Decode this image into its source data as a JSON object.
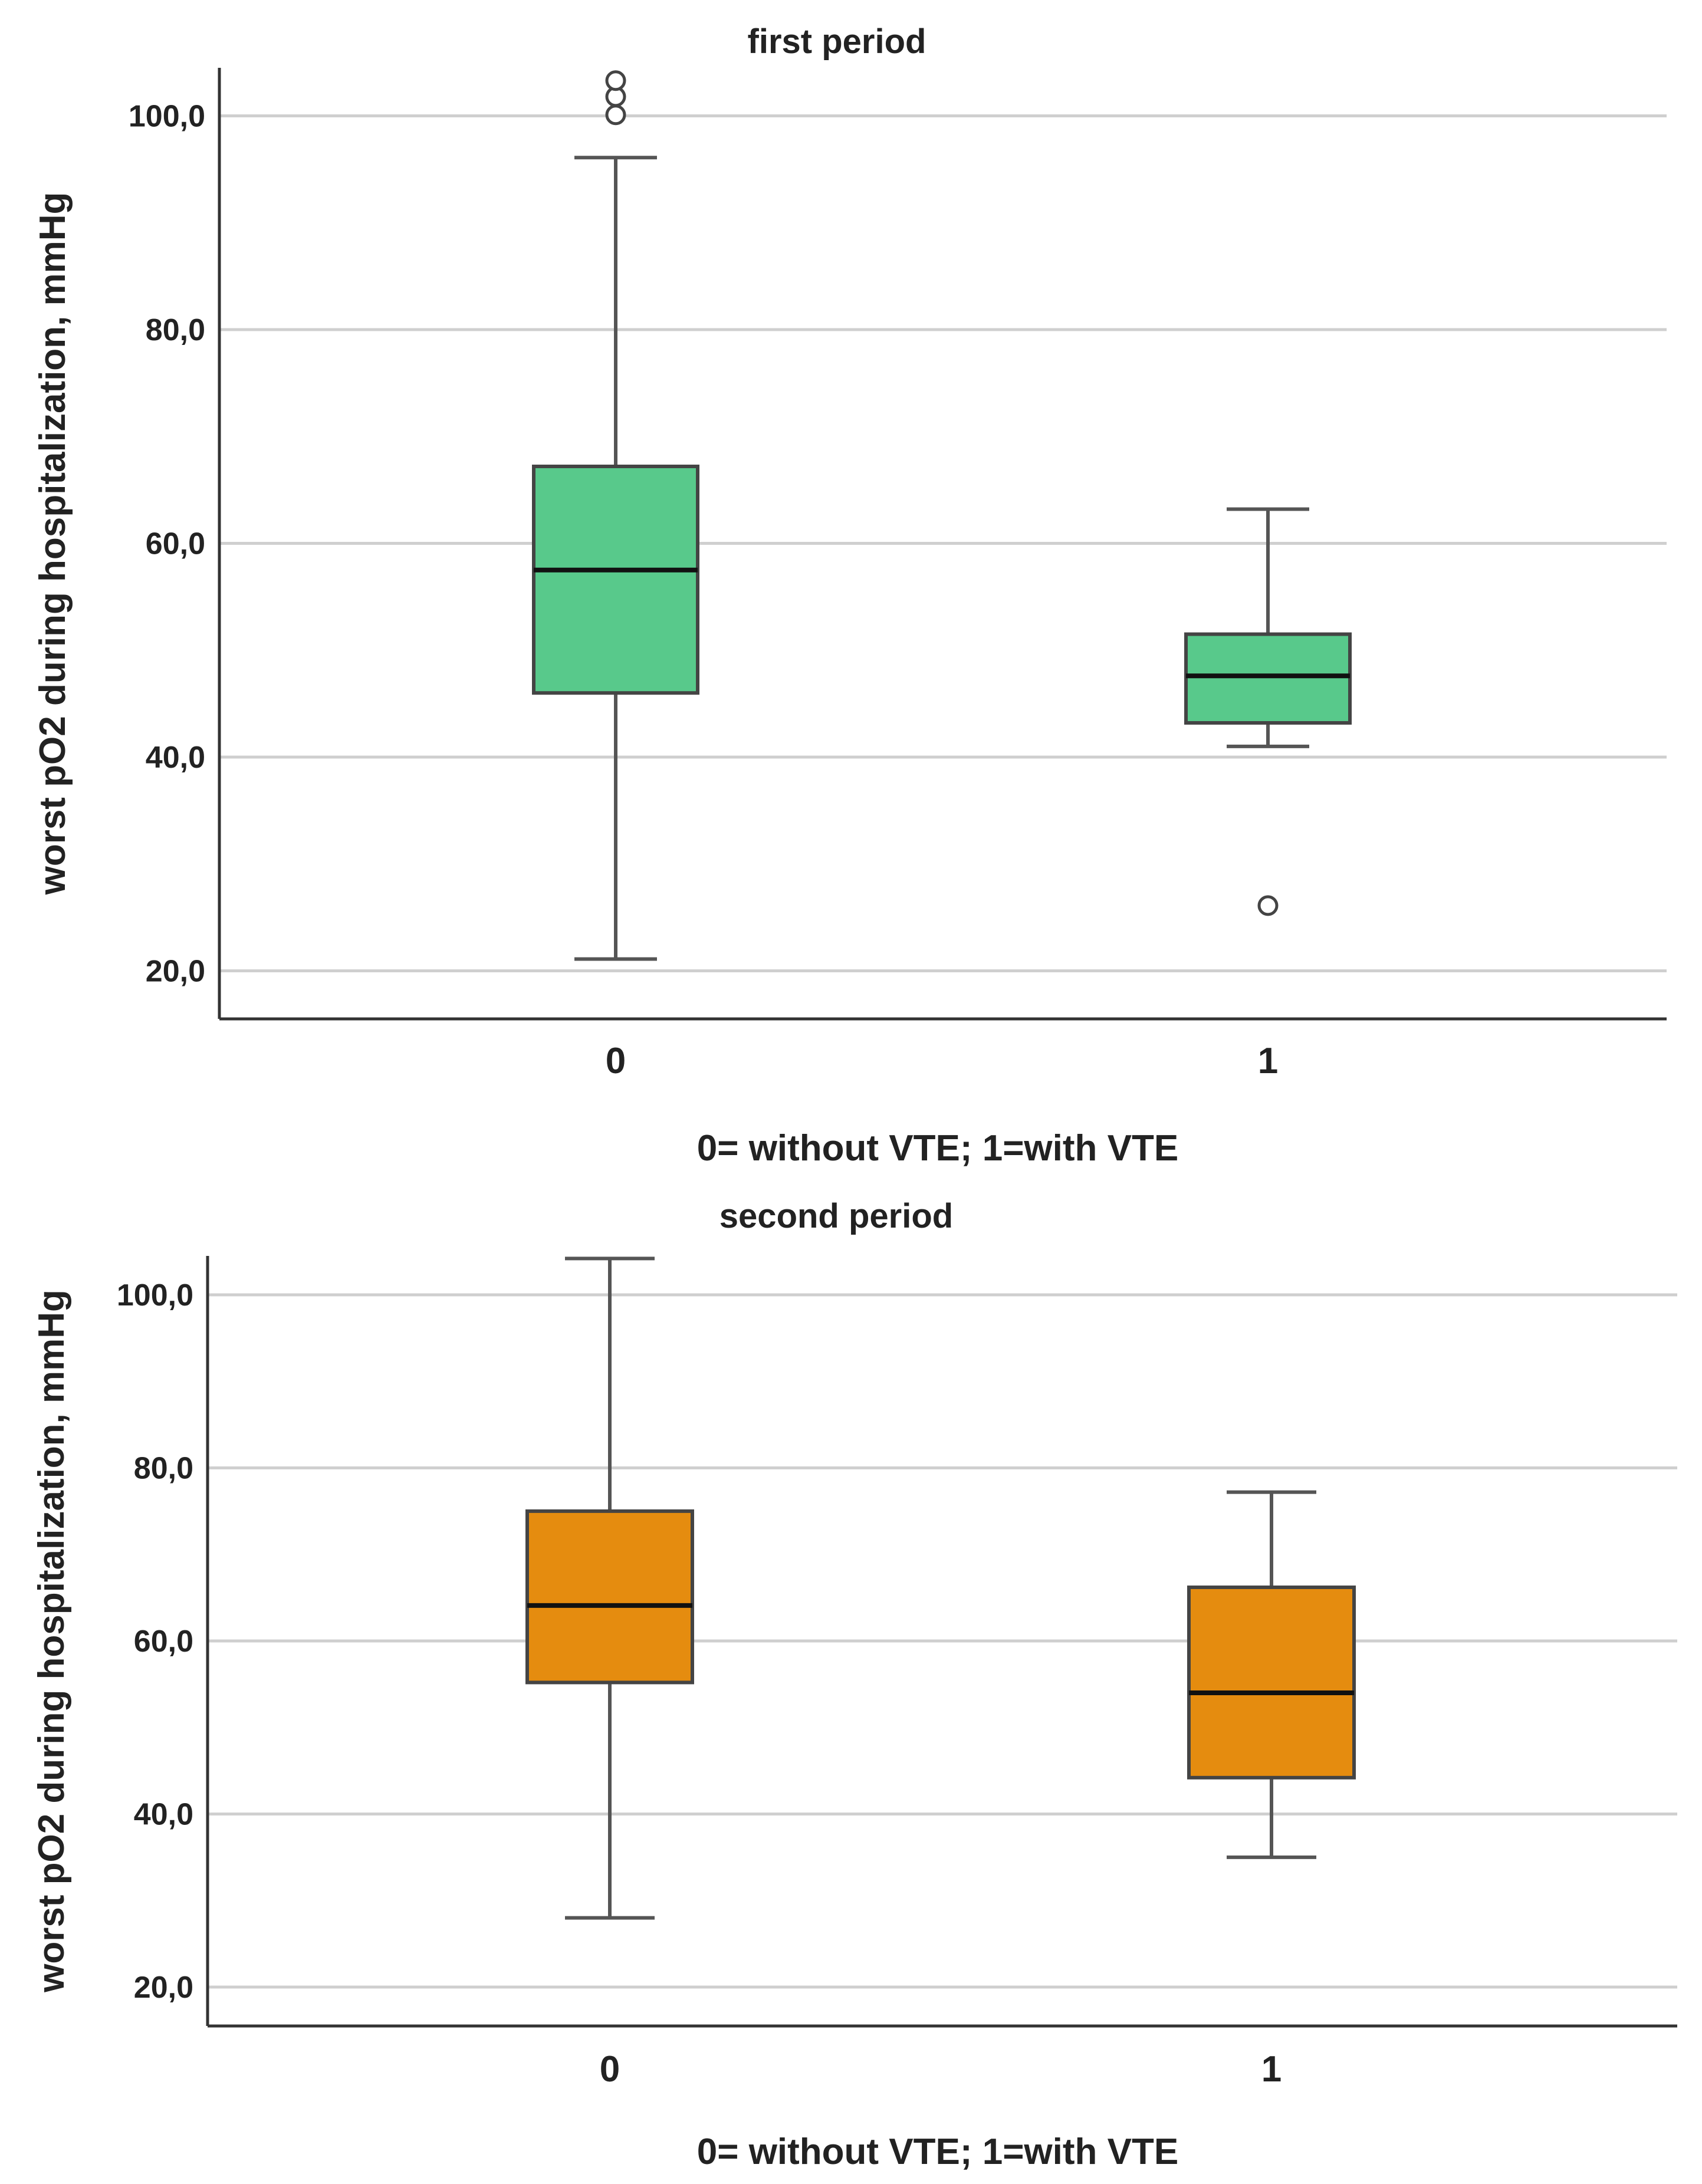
{
  "chart_data": [
    {
      "type": "boxplot",
      "title": "first period",
      "xlabel": "0= without VTE; 1=with VTE",
      "ylabel": "worst pO2 during hospitalization, mmHg",
      "ylim": [
        15.5,
        104.5
      ],
      "yticks": [
        20,
        40,
        60,
        80,
        100
      ],
      "ytick_labels": [
        "20,0",
        "40,0",
        "60,0",
        "80,0",
        "100,0"
      ],
      "grid": true,
      "box_color": "#58c98b",
      "categories": [
        "0",
        "1"
      ],
      "boxes": [
        {
          "category": "0",
          "whisker_low": 21.1,
          "q1": 46.0,
          "median": 57.5,
          "q3": 67.2,
          "whisker_high": 96.1,
          "outliers": [
            100.1,
            101.8,
            103.3
          ]
        },
        {
          "category": "1",
          "whisker_low": 41.0,
          "q1": 43.2,
          "median": 47.6,
          "q3": 51.5,
          "whisker_high": 63.2,
          "outliers": [
            26.1
          ]
        }
      ]
    },
    {
      "type": "boxplot",
      "title": "second period",
      "xlabel": "0= without VTE; 1=with VTE",
      "ylabel": "worst pO2 during hospitalization, mmHg",
      "ylim": [
        15.5,
        104.5
      ],
      "yticks": [
        20,
        40,
        60,
        80,
        100
      ],
      "ytick_labels": [
        "20,0",
        "40,0",
        "60,0",
        "80,0",
        "100,0"
      ],
      "grid": true,
      "box_color": "#e58c0f",
      "categories": [
        "0",
        "1"
      ],
      "boxes": [
        {
          "category": "0",
          "whisker_low": 28.0,
          "q1": 55.2,
          "median": 64.1,
          "q3": 75.0,
          "whisker_high": 104.2,
          "outliers": []
        },
        {
          "category": "1",
          "whisker_low": 35.0,
          "q1": 44.2,
          "median": 54.0,
          "q3": 66.2,
          "whisker_high": 77.2,
          "outliers": []
        }
      ]
    }
  ]
}
